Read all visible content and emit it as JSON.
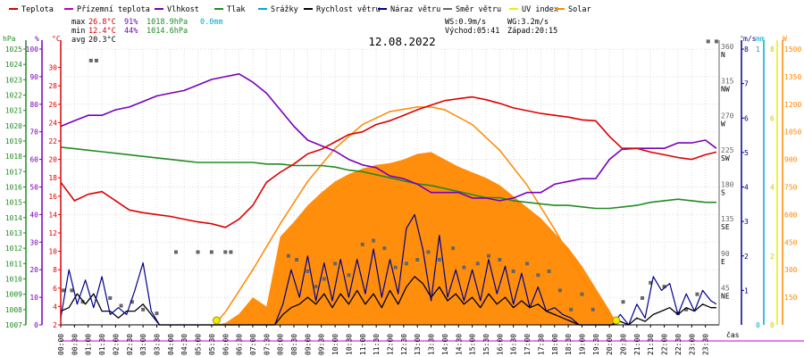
{
  "legend": [
    {
      "label": "Teplota",
      "color": "#dd0000"
    },
    {
      "label": "Přízemní teplota",
      "color": "#bb00bb"
    },
    {
      "label": "Vlhkost",
      "color": "#7700bb"
    },
    {
      "label": "Tlak",
      "color": "#228b22"
    },
    {
      "label": "Srážky",
      "color": "#00aacc"
    },
    {
      "label": "Rychlost větru",
      "color": "#000000"
    },
    {
      "label": "Náraz větru",
      "color": "#000088"
    },
    {
      "label": "Směr větru",
      "color": "#666666"
    },
    {
      "label": "UV index",
      "color": "#eeee00"
    },
    {
      "label": "Solar",
      "color": "#ff8800"
    }
  ],
  "stats": {
    "max": {
      "label": "max",
      "temp": "26.8°C",
      "hum": "91%",
      "press": "1018.9hPa",
      "rain": "0.0mm"
    },
    "min": {
      "label": "min",
      "temp": "12.4°C",
      "hum": "44%",
      "press": "1014.6hPa"
    },
    "avg": {
      "label": "avg",
      "temp": "20.3°C"
    }
  },
  "wind_info": {
    "ws": "WS:0.9m/s",
    "wg": "WG:3.2m/s"
  },
  "sun_info": {
    "rise": "Východ:05:41",
    "set": "Západ:20:15"
  },
  "title": "12.08.2022",
  "xlabel": "čas",
  "unit_labels": {
    "hpa": "hPa",
    "pct": "%",
    "degc": "°C",
    "deg": "°",
    "ms": "m/s",
    "mm": "mm",
    "w": "W"
  },
  "colors": {
    "temp": "#dd0000",
    "hum": "#7700bb",
    "press": "#228b22",
    "rain": "#00aacc",
    "wind": "#000000",
    "gust": "#000088",
    "dir": "#666666",
    "uv": "#eeee00",
    "solar": "#ff8800",
    "axis_pink": "#cc00cc"
  },
  "chart_data": {
    "type": "line",
    "title": "12.08.2022",
    "x_ticks": [
      "00:00",
      "00:30",
      "01:00",
      "01:30",
      "02:00",
      "02:30",
      "03:00",
      "03:30",
      "04:00",
      "04:30",
      "05:00",
      "05:30",
      "06:00",
      "06:30",
      "07:00",
      "07:30",
      "08:00",
      "08:30",
      "09:00",
      "09:30",
      "10:00",
      "10:30",
      "11:00",
      "11:30",
      "12:00",
      "12:30",
      "13:00",
      "13:30",
      "14:00",
      "14:30",
      "15:00",
      "15:30",
      "16:00",
      "16:30",
      "17:00",
      "17:30",
      "18:00",
      "18:30",
      "19:00",
      "19:30",
      "20:00",
      "20:30",
      "21:00",
      "21:30",
      "22:00",
      "22:30",
      "23:00",
      "23:30"
    ],
    "axes": {
      "pressure": {
        "label": "hPa",
        "range": [
          1007,
          1025
        ],
        "ticks": [
          1007,
          1008,
          1009,
          1010,
          1011,
          1012,
          1013,
          1014,
          1015,
          1016,
          1017,
          1018,
          1019,
          1020,
          1021,
          1022,
          1023,
          1024,
          1025
        ]
      },
      "humidity": {
        "label": "%",
        "range": [
          0,
          100
        ],
        "ticks": [
          0,
          10,
          20,
          30,
          40,
          50,
          60,
          70,
          80,
          90,
          100
        ]
      },
      "temperature": {
        "label": "°C",
        "range": [
          2,
          32
        ],
        "ticks": [
          2,
          4,
          6,
          8,
          10,
          12,
          14,
          16,
          18,
          20,
          22,
          24,
          26,
          28,
          30
        ]
      },
      "direction": {
        "label": "°",
        "range": [
          0,
          360
        ],
        "ticks": [
          {
            "v": 45,
            "t": "45",
            "d": "NE"
          },
          {
            "v": 90,
            "t": "90",
            "d": "E"
          },
          {
            "v": 135,
            "t": "135",
            "d": "SE"
          },
          {
            "v": 180,
            "t": "180",
            "d": "S"
          },
          {
            "v": 225,
            "t": "225",
            "d": "SW"
          },
          {
            "v": 270,
            "t": "270",
            "d": "W"
          },
          {
            "v": 315,
            "t": "315",
            "d": "NW"
          },
          {
            "v": 360,
            "t": "360",
            "d": "N"
          }
        ]
      },
      "wind": {
        "label": "m/s",
        "range": [
          0,
          8
        ],
        "ticks": [
          1,
          2,
          3,
          4,
          5,
          6,
          7,
          8
        ]
      },
      "rain": {
        "label": "mm",
        "range": [
          0,
          1
        ],
        "ticks": [
          0,
          1
        ]
      },
      "uv": {
        "label": "",
        "range": [
          0,
          8
        ],
        "ticks": [
          0,
          2,
          4,
          6,
          8
        ]
      },
      "solar": {
        "label": "W",
        "range": [
          0,
          1500
        ],
        "ticks": [
          150,
          300,
          450,
          600,
          750,
          900,
          1050,
          1200,
          1350,
          1500
        ]
      }
    },
    "series": [
      {
        "name": "Teplota",
        "axis": "temperature",
        "x": [
          0,
          0.5,
          1,
          1.5,
          2,
          2.5,
          3,
          3.5,
          4,
          4.5,
          5,
          5.5,
          6,
          6.5,
          7,
          7.5,
          8,
          8.5,
          9,
          9.5,
          10,
          10.5,
          11,
          11.5,
          12,
          12.5,
          13,
          13.5,
          14,
          14.5,
          15,
          15.5,
          16,
          16.5,
          17,
          17.5,
          18,
          18.5,
          19,
          19.5,
          20,
          20.5,
          21,
          21.5,
          22,
          22.5,
          23,
          23.5,
          23.9
        ],
        "y": [
          17.5,
          15.5,
          16.2,
          16.5,
          15.5,
          14.5,
          14.2,
          14.0,
          13.8,
          13.5,
          13.2,
          13.0,
          12.6,
          13.5,
          15.0,
          17.5,
          18.6,
          19.5,
          20.6,
          21.1,
          21.9,
          22.7,
          23.0,
          23.8,
          24.2,
          24.8,
          25.4,
          25.9,
          26.4,
          26.6,
          26.8,
          26.5,
          26.1,
          25.6,
          25.3,
          25.0,
          24.8,
          24.6,
          24.3,
          24.2,
          22.5,
          21.1,
          21.2,
          20.8,
          20.5,
          20.2,
          20.0,
          20.5,
          20.8
        ]
      },
      {
        "name": "Vlhkost",
        "axis": "humidity",
        "x": [
          0,
          0.5,
          1,
          1.5,
          2,
          2.5,
          3,
          3.5,
          4,
          4.5,
          5,
          5.5,
          6,
          6.5,
          7,
          7.5,
          8,
          8.5,
          9,
          9.5,
          10,
          10.5,
          11,
          11.5,
          12,
          12.5,
          13,
          13.5,
          14,
          14.5,
          15,
          15.5,
          16,
          16.5,
          17,
          17.5,
          18,
          18.5,
          19,
          19.5,
          20,
          20.5,
          21,
          21.5,
          22,
          22.5,
          23,
          23.5,
          23.9
        ],
        "y": [
          72,
          74,
          76,
          76,
          78,
          79,
          81,
          83,
          84,
          85,
          87,
          89,
          90,
          91,
          88,
          84,
          78,
          72,
          67,
          65,
          63,
          60,
          58,
          57,
          54,
          53,
          51,
          48,
          48,
          48,
          46,
          46,
          45,
          46,
          48,
          48,
          51,
          52,
          53,
          53,
          60,
          64,
          64,
          64,
          64,
          66,
          66,
          67,
          64
        ]
      },
      {
        "name": "Tlak",
        "axis": "pressure",
        "x": [
          0,
          0.5,
          1,
          1.5,
          2,
          2.5,
          3,
          3.5,
          4,
          4.5,
          5,
          5.5,
          6,
          6.5,
          7,
          7.5,
          8,
          8.5,
          9,
          9.5,
          10,
          10.5,
          11,
          11.5,
          12,
          12.5,
          13,
          13.5,
          14,
          14.5,
          15,
          15.5,
          16,
          16.5,
          17,
          17.5,
          18,
          18.5,
          19,
          19.5,
          20,
          20.5,
          21,
          21.5,
          22,
          22.5,
          23,
          23.5,
          23.9
        ],
        "y": [
          1018.6,
          1018.5,
          1018.4,
          1018.3,
          1018.2,
          1018.1,
          1018.0,
          1017.9,
          1017.8,
          1017.7,
          1017.6,
          1017.6,
          1017.6,
          1017.6,
          1017.6,
          1017.5,
          1017.5,
          1017.4,
          1017.4,
          1017.4,
          1017.3,
          1017.1,
          1017.0,
          1016.8,
          1016.6,
          1016.4,
          1016.2,
          1016.1,
          1015.9,
          1015.7,
          1015.5,
          1015.3,
          1015.3,
          1015.1,
          1015.0,
          1014.9,
          1014.8,
          1014.8,
          1014.7,
          1014.6,
          1014.6,
          1014.7,
          1014.8,
          1015.0,
          1015.1,
          1015.2,
          1015.1,
          1015.0,
          1015.0
        ]
      },
      {
        "name": "Rychlost větru",
        "axis": "wind",
        "x": [
          0,
          0.3,
          0.6,
          0.9,
          1.2,
          1.5,
          1.8,
          2.1,
          2.4,
          2.7,
          3.0,
          3.3,
          3.6,
          3.9,
          4.2,
          4.5,
          4.8,
          5.1,
          5.4,
          5.7,
          6.0,
          6.3,
          6.6,
          6.9,
          7.2,
          7.5,
          7.8,
          8.1,
          8.4,
          8.7,
          9.0,
          9.3,
          9.6,
          9.9,
          10.2,
          10.5,
          10.8,
          11.1,
          11.4,
          11.7,
          12.0,
          12.3,
          12.6,
          12.9,
          13.2,
          13.5,
          13.8,
          14.1,
          14.4,
          14.7,
          15.0,
          15.3,
          15.6,
          15.9,
          16.2,
          16.5,
          16.8,
          17.1,
          17.4,
          17.7,
          18.0,
          18.3,
          18.6,
          18.9,
          19.2,
          19.5,
          19.8,
          20.1,
          20.4,
          20.7,
          21.0,
          21.3,
          21.6,
          21.9,
          22.2,
          22.5,
          22.8,
          23.1,
          23.4,
          23.7,
          23.9
        ],
        "y": [
          0.4,
          0.5,
          0.9,
          0.6,
          0.9,
          0.4,
          0.4,
          0.2,
          0.4,
          0.4,
          0.6,
          0.3,
          0.0,
          0.0,
          0.0,
          0.0,
          0.0,
          0.0,
          0.0,
          0.0,
          0.0,
          0.0,
          0.0,
          0.0,
          0.0,
          0.0,
          0.0,
          0.3,
          0.5,
          0.6,
          0.8,
          0.6,
          0.9,
          0.5,
          0.9,
          0.6,
          1.0,
          0.6,
          0.9,
          0.5,
          1.0,
          0.6,
          1.1,
          1.4,
          1.2,
          0.8,
          1.1,
          0.7,
          0.9,
          0.6,
          0.8,
          0.5,
          0.9,
          0.6,
          0.8,
          0.5,
          0.7,
          0.5,
          0.6,
          0.4,
          0.3,
          0.2,
          0.1,
          0.0,
          0.0,
          0.0,
          0.0,
          0.0,
          0.1,
          0.0,
          0.2,
          0.1,
          0.3,
          0.4,
          0.5,
          0.3,
          0.5,
          0.4,
          0.6,
          0.5,
          0.5
        ]
      },
      {
        "name": "Náraz větru",
        "axis": "wind",
        "x": [
          0,
          0.3,
          0.6,
          0.9,
          1.2,
          1.5,
          1.8,
          2.1,
          2.4,
          2.7,
          3.0,
          3.3,
          3.6,
          3.9,
          4.2,
          4.5,
          4.8,
          5.1,
          5.4,
          5.7,
          6.0,
          6.3,
          6.6,
          6.9,
          7.2,
          7.5,
          7.8,
          8.1,
          8.4,
          8.7,
          9.0,
          9.3,
          9.6,
          9.9,
          10.2,
          10.5,
          10.8,
          11.1,
          11.4,
          11.7,
          12.0,
          12.3,
          12.6,
          12.9,
          13.2,
          13.5,
          13.8,
          14.1,
          14.4,
          14.7,
          15.0,
          15.3,
          15.6,
          15.9,
          16.2,
          16.5,
          16.8,
          17.1,
          17.4,
          17.7,
          18.0,
          18.3,
          18.6,
          18.9,
          19.2,
          19.5,
          19.8,
          20.1,
          20.4,
          20.7,
          21.0,
          21.3,
          21.6,
          21.9,
          22.2,
          22.5,
          22.8,
          23.1,
          23.4,
          23.7,
          23.9
        ],
        "y": [
          0.2,
          1.6,
          0.6,
          1.3,
          0.5,
          1.4,
          0.3,
          0.5,
          0.3,
          1.0,
          1.8,
          0.4,
          0.0,
          0.0,
          0.0,
          0.0,
          0.0,
          0.0,
          0.0,
          0.0,
          0.0,
          0.0,
          0.0,
          0.0,
          0.0,
          0.0,
          0.0,
          0.6,
          1.6,
          0.8,
          2.0,
          0.7,
          1.8,
          0.7,
          1.9,
          0.8,
          1.9,
          0.9,
          2.2,
          0.8,
          1.9,
          0.9,
          2.8,
          3.2,
          2.2,
          0.7,
          2.6,
          0.8,
          1.6,
          0.7,
          1.6,
          0.7,
          1.9,
          0.9,
          1.7,
          0.6,
          1.5,
          0.5,
          1.1,
          0.4,
          0.5,
          0.3,
          0.2,
          0.0,
          0.0,
          0.0,
          0.0,
          0.0,
          0.3,
          0.0,
          0.6,
          0.2,
          1.4,
          1.0,
          1.2,
          0.3,
          0.9,
          0.4,
          1.0,
          0.7,
          0.6
        ]
      },
      {
        "name": "Solar",
        "axis": "solar",
        "x": [
          5.6,
          6.0,
          6.5,
          7.0,
          7.5,
          8.0,
          8.5,
          9.0,
          9.5,
          10.0,
          10.5,
          11.0,
          11.5,
          12.0,
          12.5,
          13.0,
          13.5,
          14.0,
          14.5,
          15.0,
          15.5,
          16.0,
          16.5,
          17.0,
          17.5,
          18.0,
          18.5,
          19.0,
          19.5,
          20.0,
          20.3
        ],
        "y": [
          0,
          10,
          60,
          150,
          100,
          480,
          560,
          650,
          720,
          780,
          820,
          850,
          870,
          880,
          900,
          930,
          940,
          900,
          860,
          830,
          800,
          760,
          700,
          640,
          580,
          500,
          420,
          320,
          200,
          80,
          0
        ]
      },
      {
        "name": "Solar max",
        "axis": "solar",
        "x": [
          5.6,
          6.0,
          7.0,
          8.0,
          9.0,
          10.0,
          11.0,
          12.0,
          13.0,
          13.5,
          14.0,
          15.0,
          16.0,
          17.0,
          18.0,
          19.0,
          20.0,
          20.3
        ],
        "y": [
          0,
          70,
          300,
          550,
          780,
          960,
          1090,
          1160,
          1185,
          1185,
          1170,
          1090,
          950,
          760,
          520,
          260,
          40,
          0
        ]
      },
      {
        "name": "Směr větru",
        "axis": "direction",
        "x": [
          0.1,
          0.4,
          0.8,
          1.1,
          1.3,
          1.8,
          2.2,
          2.6,
          3.0,
          3.5,
          4.2,
          5.0,
          5.5,
          6.0,
          6.2,
          8.3,
          8.6,
          9.0,
          9.3,
          9.6,
          10.0,
          10.5,
          11.0,
          11.4,
          11.8,
          12.2,
          12.6,
          13.0,
          13.4,
          13.8,
          14.3,
          14.7,
          15.2,
          15.6,
          16.0,
          16.5,
          17.0,
          17.4,
          17.8,
          18.2,
          18.6,
          19.0,
          19.4,
          20.5,
          21.2,
          21.5,
          22.0,
          22.5,
          22.8,
          23.2,
          23.6,
          23.9
        ],
        "y": [
          45,
          45,
          30,
          345,
          345,
          35,
          25,
          30,
          20,
          15,
          95,
          95,
          95,
          95,
          95,
          90,
          85,
          70,
          50,
          60,
          80,
          65,
          105,
          110,
          100,
          75,
          80,
          85,
          95,
          85,
          100,
          75,
          80,
          90,
          85,
          70,
          80,
          65,
          70,
          45,
          20,
          40,
          20,
          30,
          35,
          55,
          50,
          15,
          20,
          40,
          370,
          370
        ]
      },
      {
        "name": "Srážky",
        "axis": "rain",
        "x": [
          0,
          24
        ],
        "y": [
          0,
          0
        ]
      }
    ]
  }
}
